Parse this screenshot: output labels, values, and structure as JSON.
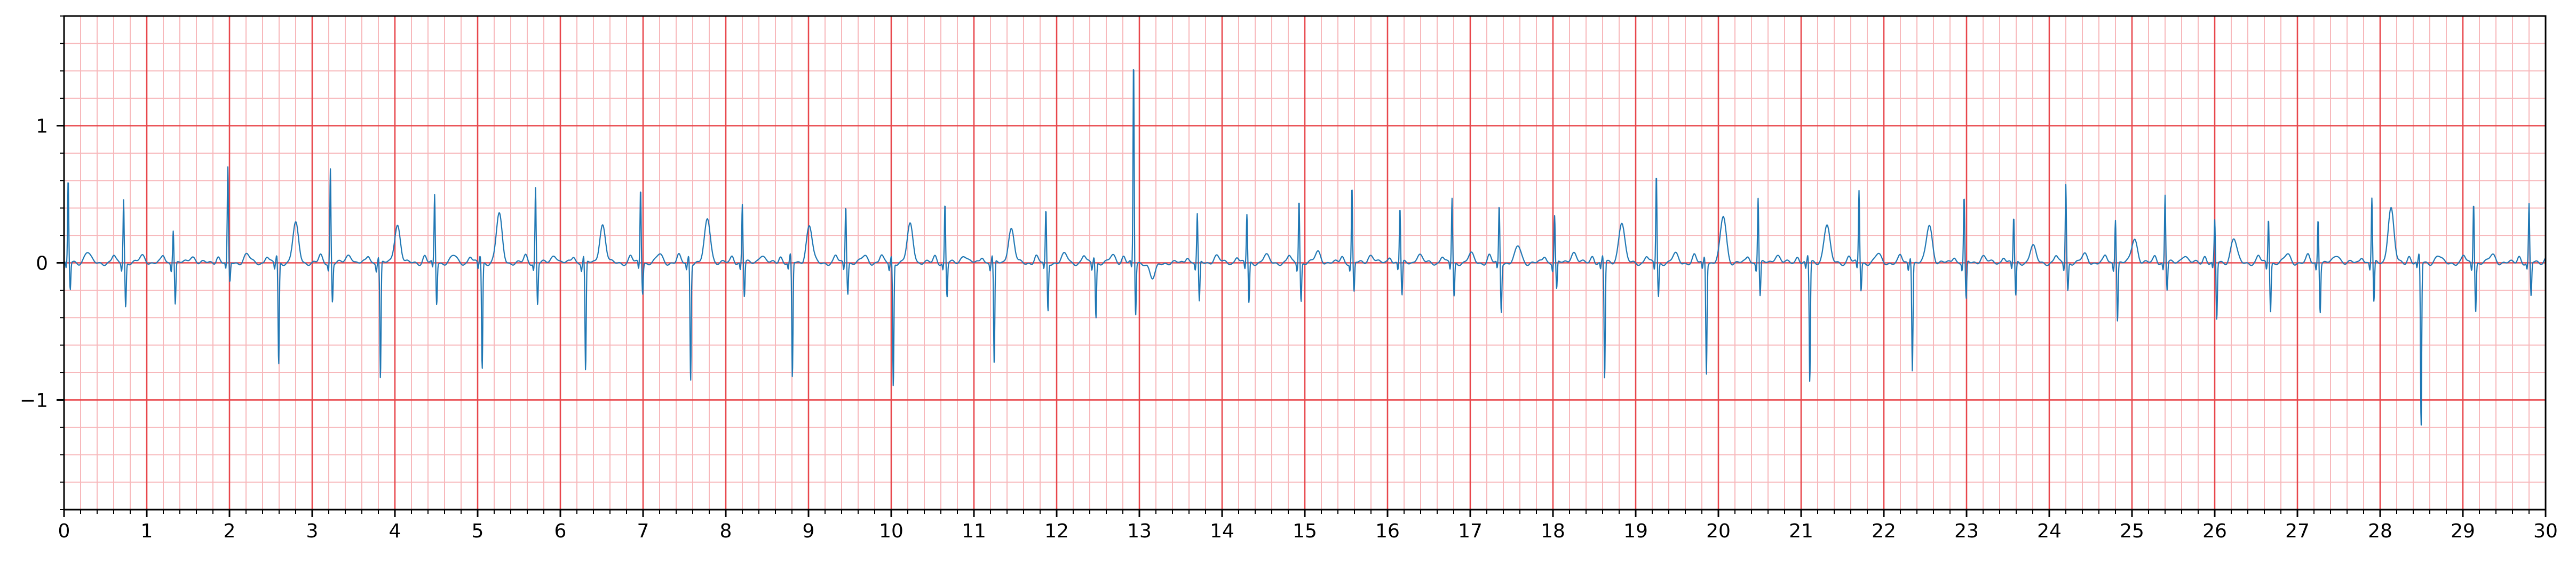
{
  "chart_data": {
    "type": "line",
    "title": "",
    "xlabel": "",
    "ylabel": "",
    "xlim": [
      0,
      30
    ],
    "ylim": [
      -1.8,
      1.8
    ],
    "x_ticks": [
      0,
      1,
      2,
      3,
      4,
      5,
      6,
      7,
      8,
      9,
      10,
      11,
      12,
      13,
      14,
      15,
      16,
      17,
      18,
      19,
      20,
      21,
      22,
      23,
      24,
      25,
      26,
      27,
      28,
      29,
      30
    ],
    "x_tick_labels": [
      "0",
      "1",
      "2",
      "3",
      "4",
      "5",
      "6",
      "7",
      "8",
      "9",
      "10",
      "11",
      "12",
      "13",
      "14",
      "15",
      "16",
      "17",
      "18",
      "19",
      "20",
      "21",
      "22",
      "23",
      "24",
      "25",
      "26",
      "27",
      "28",
      "29",
      "30"
    ],
    "y_ticks": [
      -1,
      0,
      1
    ],
    "y_tick_labels": [
      "−1",
      "0",
      "1"
    ],
    "grid": {
      "major": true,
      "minor": true,
      "major_x_step": 1,
      "minor_x_step": 0.2,
      "major_y_step": 1,
      "minor_y_step": 0.2
    },
    "colors": {
      "signal": "#1f77b4",
      "major_grid": "#e8474c",
      "minor_grid": "#f7b8bb",
      "axes": "#000000"
    },
    "series": [
      {
        "beats": [
          {
            "t": 0.05,
            "r": 0.6,
            "s": -0.2,
            "t_wave": 0.08
          },
          {
            "t": 0.72,
            "r": 0.47,
            "s": -0.32,
            "t_wave": 0.05
          },
          {
            "t": 1.32,
            "r": 0.25,
            "s": -0.3,
            "t_wave": 0.05
          },
          {
            "t": 1.98,
            "r": 0.68,
            "s": -0.15,
            "t_wave": 0.06
          },
          {
            "t": 2.57,
            "r": 0.05,
            "s": -0.75,
            "t_wave": 0.28
          },
          {
            "t": 3.22,
            "r": 0.69,
            "s": -0.28,
            "t_wave": 0.06
          },
          {
            "t": 3.8,
            "r": 0.05,
            "s": -0.85,
            "t_wave": 0.28
          },
          {
            "t": 4.48,
            "r": 0.49,
            "s": -0.3,
            "t_wave": 0.05
          },
          {
            "t": 5.03,
            "r": 0.05,
            "s": -0.78,
            "t_wave": 0.35
          },
          {
            "t": 5.7,
            "r": 0.55,
            "s": -0.3,
            "t_wave": 0.06
          },
          {
            "t": 6.28,
            "r": 0.05,
            "s": -0.8,
            "t_wave": 0.28
          },
          {
            "t": 6.97,
            "r": 0.55,
            "s": -0.22,
            "t_wave": 0.06
          },
          {
            "t": 7.55,
            "r": 0.05,
            "s": -0.85,
            "t_wave": 0.32
          },
          {
            "t": 8.2,
            "r": 0.43,
            "s": -0.25,
            "t_wave": 0.06
          },
          {
            "t": 8.78,
            "r": 0.05,
            "s": -0.85,
            "t_wave": 0.27
          },
          {
            "t": 9.45,
            "r": 0.43,
            "s": -0.22,
            "t_wave": 0.05
          },
          {
            "t": 10.0,
            "r": 0.05,
            "s": -0.9,
            "t_wave": 0.28
          },
          {
            "t": 10.65,
            "r": 0.43,
            "s": -0.25,
            "t_wave": 0.06
          },
          {
            "t": 11.22,
            "r": 0.05,
            "s": -0.75,
            "t_wave": 0.25
          },
          {
            "t": 11.87,
            "r": 0.38,
            "s": -0.35,
            "t_wave": 0.06
          },
          {
            "t": 12.45,
            "r": 0.05,
            "s": -0.4,
            "t_wave": 0.05
          },
          {
            "t": 12.93,
            "r": 1.47,
            "s": -0.38,
            "t_wave": -0.12
          },
          {
            "t": 13.7,
            "r": 0.35,
            "s": -0.3,
            "t_wave": 0.05
          },
          {
            "t": 14.3,
            "r": 0.35,
            "s": -0.3,
            "t_wave": 0.05
          },
          {
            "t": 14.93,
            "r": 0.47,
            "s": -0.28,
            "t_wave": 0.08
          },
          {
            "t": 15.57,
            "r": 0.55,
            "s": -0.22,
            "t_wave": 0.06
          },
          {
            "t": 16.15,
            "r": 0.4,
            "s": -0.25,
            "t_wave": 0.06
          },
          {
            "t": 16.78,
            "r": 0.47,
            "s": -0.25,
            "t_wave": 0.06
          },
          {
            "t": 17.35,
            "r": 0.42,
            "s": -0.35,
            "t_wave": 0.12
          },
          {
            "t": 18.02,
            "r": 0.35,
            "s": -0.2,
            "t_wave": 0.08
          },
          {
            "t": 18.6,
            "r": 0.05,
            "s": -0.85,
            "t_wave": 0.3
          },
          {
            "t": 19.25,
            "r": 0.65,
            "s": -0.25,
            "t_wave": 0.06
          },
          {
            "t": 19.83,
            "r": 0.05,
            "s": -0.8,
            "t_wave": 0.34
          },
          {
            "t": 20.48,
            "r": 0.48,
            "s": -0.25,
            "t_wave": 0.06
          },
          {
            "t": 21.08,
            "r": 0.05,
            "s": -0.88,
            "t_wave": 0.28
          },
          {
            "t": 21.7,
            "r": 0.53,
            "s": -0.2,
            "t_wave": 0.06
          },
          {
            "t": 22.32,
            "r": 0.05,
            "s": -0.78,
            "t_wave": 0.28
          },
          {
            "t": 22.97,
            "r": 0.48,
            "s": -0.28,
            "t_wave": 0.05
          },
          {
            "t": 23.57,
            "r": 0.33,
            "s": -0.25,
            "t_wave": 0.12
          },
          {
            "t": 24.2,
            "r": 0.58,
            "s": -0.2,
            "t_wave": 0.06
          },
          {
            "t": 24.8,
            "r": 0.33,
            "s": -0.42,
            "t_wave": 0.18
          },
          {
            "t": 25.4,
            "r": 0.5,
            "s": -0.2,
            "t_wave": 0.06
          },
          {
            "t": 26.0,
            "r": 0.3,
            "s": -0.42,
            "t_wave": 0.18
          },
          {
            "t": 26.65,
            "r": 0.33,
            "s": -0.35,
            "t_wave": 0.06
          },
          {
            "t": 27.25,
            "r": 0.33,
            "s": -0.35,
            "t_wave": 0.06
          },
          {
            "t": 27.9,
            "r": 0.47,
            "s": -0.3,
            "t_wave": 0.4
          },
          {
            "t": 28.47,
            "r": 0.05,
            "s": -1.2,
            "t_wave": 0.05
          },
          {
            "t": 29.13,
            "r": 0.45,
            "s": -0.35,
            "t_wave": 0.06
          },
          {
            "t": 29.8,
            "r": 0.42,
            "s": -0.25,
            "t_wave": 0.06
          }
        ]
      }
    ]
  }
}
